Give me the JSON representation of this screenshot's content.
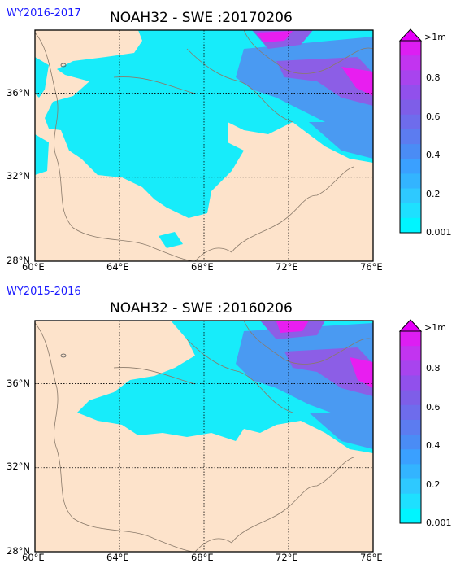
{
  "chart_data": [
    {
      "type": "heatmap",
      "water_year": "WY2016-2017",
      "title": "NOAH32 - SWE :20170206",
      "x_ticks": [
        "60°E",
        "64°E",
        "68°E",
        "72°E",
        "76°E"
      ],
      "y_ticks": [
        "28°N",
        "32°N",
        "36°N"
      ],
      "xlim": [
        60,
        76
      ],
      "ylim": [
        28,
        39
      ],
      "grid": true,
      "colorbar": {
        "labels": [
          "0.001",
          "0.2",
          "0.4",
          "0.6",
          "0.8",
          ">1m"
        ],
        "extend": "max"
      }
    },
    {
      "type": "heatmap",
      "water_year": "WY2015-2016",
      "title": "NOAH32 - SWE :20160206",
      "x_ticks": [
        "60°E",
        "64°E",
        "68°E",
        "72°E",
        "76°E"
      ],
      "y_ticks": [
        "28°N",
        "32°N",
        "36°N"
      ],
      "xlim": [
        60,
        76
      ],
      "ylim": [
        28,
        39
      ],
      "grid": true,
      "colorbar": {
        "labels": [
          "0.001",
          "0.2",
          "0.4",
          "0.6",
          "0.8",
          ">1m"
        ],
        "extend": "max"
      }
    }
  ],
  "colors": {
    "land": "#fde3cb",
    "snow_low": "#17ecfa",
    "snow_mid": "#4a9af2",
    "snow_high": "#8c5ee6",
    "snow_max": "#e81ef0",
    "water_year_label": "#1a1aff",
    "colorbar_steps": [
      "#00f5ff",
      "#1ee0ff",
      "#2ec9ff",
      "#33b4ff",
      "#3aa0ff",
      "#4a8cf5",
      "#5c7cf0",
      "#6e6cec",
      "#7e5ee8",
      "#9150ec",
      "#a844ee",
      "#c234f0",
      "#dd1ef3"
    ],
    "colorbar_extend": "#e500f8"
  }
}
